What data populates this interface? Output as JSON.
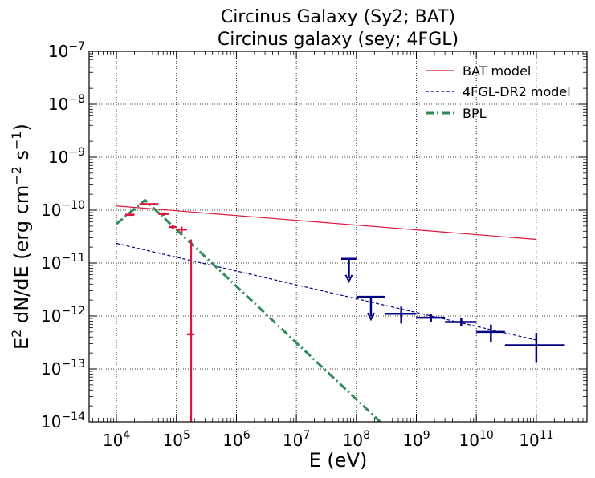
{
  "chart_data": {
    "type": "scatter",
    "title": "Circinus Galaxy (Sy2; BAT)",
    "subtitle": "Circinus galaxy (sey; 4FGL)",
    "xlabel": "E (eV)",
    "ylabel_base": "E",
    "ylabel_sup": "2",
    "ylabel_mid": " dN/dE (erg cm",
    "ylabel_sup2": "−2",
    "ylabel_mid2": " s",
    "ylabel_sup3": "−1",
    "ylabel_end": ")",
    "xscale": "log",
    "yscale": "log",
    "xlim": [
      3500,
      700000000000
    ],
    "ylim": [
      1e-14,
      1e-07
    ],
    "grid": true,
    "legend_position": "top-right",
    "x_ticks": [
      {
        "value": 10000,
        "base": "10",
        "exp": "4"
      },
      {
        "value": 100000,
        "base": "10",
        "exp": "5"
      },
      {
        "value": 1000000,
        "base": "10",
        "exp": "6"
      },
      {
        "value": 10000000,
        "base": "10",
        "exp": "7"
      },
      {
        "value": 100000000,
        "base": "10",
        "exp": "8"
      },
      {
        "value": 1000000000,
        "base": "10",
        "exp": "9"
      },
      {
        "value": 10000000000,
        "base": "10",
        "exp": "10"
      },
      {
        "value": 100000000000,
        "base": "10",
        "exp": "11"
      }
    ],
    "y_ticks": [
      {
        "value": 1e-14,
        "base": "10",
        "exp": "−14"
      },
      {
        "value": 1e-13,
        "base": "10",
        "exp": "−13"
      },
      {
        "value": 1e-12,
        "base": "10",
        "exp": "−12"
      },
      {
        "value": 1e-11,
        "base": "10",
        "exp": "−11"
      },
      {
        "value": 1e-10,
        "base": "10",
        "exp": "−10"
      },
      {
        "value": 1e-09,
        "base": "10",
        "exp": "−9"
      },
      {
        "value": 1e-08,
        "base": "10",
        "exp": "−8"
      },
      {
        "value": 1e-07,
        "base": "10",
        "exp": "−7"
      }
    ],
    "models": [
      {
        "name": "BAT model",
        "color": "#dc143c",
        "style": "solid",
        "x": [
          10000,
          100000000000
        ],
        "y": [
          1.2e-10,
          2.8e-11
        ]
      },
      {
        "name": "4FGL-DR2 model",
        "color": "#000080",
        "style": "dashed",
        "x": [
          10000,
          100000000000
        ],
        "y": [
          2.35e-11,
          3.5e-13
        ]
      },
      {
        "name": "BPL",
        "color": "#2e8b57",
        "style": "dashdot",
        "x": [
          10000,
          30000,
          250000000
        ],
        "y": [
          5.5e-11,
          1.55e-10,
          1e-14
        ]
      }
    ],
    "bat_points": {
      "color": "#dc143c",
      "points": [
        {
          "x": 17000,
          "xlo": 14000,
          "xhi": 20000,
          "y": 8.2e-11,
          "ylo": 7.8e-11,
          "yhi": 8.6e-11
        },
        {
          "x": 29000,
          "xlo": 24000,
          "xhi": 35000,
          "y": 1.3e-10,
          "ylo": 1.25e-10,
          "yhi": 1.36e-10
        },
        {
          "x": 42000,
          "xlo": 35000,
          "xhi": 50000,
          "y": 1.3e-10,
          "ylo": 1.24e-10,
          "yhi": 1.37e-10
        },
        {
          "x": 62000,
          "xlo": 50000,
          "xhi": 75000,
          "y": 8.5e-11,
          "ylo": 7.9e-11,
          "yhi": 9.1e-11
        },
        {
          "x": 87000,
          "xlo": 75000,
          "xhi": 100000,
          "y": 4.8e-11,
          "ylo": 4.3e-11,
          "yhi": 5.3e-11
        },
        {
          "x": 122000,
          "xlo": 100000,
          "xhi": 150000,
          "y": 4.3e-11,
          "ylo": 3.7e-11,
          "yhi": 4.9e-11
        },
        {
          "x": 175000,
          "xlo": 150000,
          "xhi": 195000,
          "y": 4.5e-13,
          "ylo": 1e-14,
          "yhi": 2.8e-11
        }
      ]
    },
    "fermi_upper_limits": {
      "color": "#000080",
      "points": [
        {
          "x": 75000000,
          "xlo": 56000000,
          "xhi": 100000000,
          "y": 1.2e-11
        },
        {
          "x": 175000000,
          "xlo": 100000000,
          "xhi": 300000000,
          "y": 2.3e-12
        }
      ]
    },
    "fermi_points": {
      "color": "#000080",
      "points": [
        {
          "x": 560000000,
          "xlo": 300000000,
          "xhi": 1000000000,
          "y": 1.1e-12,
          "ylo": 7.2e-13,
          "yhi": 1.5e-12
        },
        {
          "x": 1750000000,
          "xlo": 1000000000,
          "xhi": 3000000000,
          "y": 9.3e-13,
          "ylo": 7.8e-13,
          "yhi": 1.1e-12
        },
        {
          "x": 5600000000,
          "xlo": 3000000000,
          "xhi": 10000000000,
          "y": 7.7e-13,
          "ylo": 6.4e-13,
          "yhi": 9.2e-13
        },
        {
          "x": 17500000000,
          "xlo": 10000000000,
          "xhi": 30000000000,
          "y": 5e-13,
          "ylo": 3.2e-13,
          "yhi": 6.9e-13
        },
        {
          "x": 100000000000,
          "xlo": 30000000000,
          "xhi": 300000000000,
          "y": 2.8e-13,
          "ylo": 1.35e-13,
          "yhi": 4.8e-13
        }
      ]
    }
  }
}
